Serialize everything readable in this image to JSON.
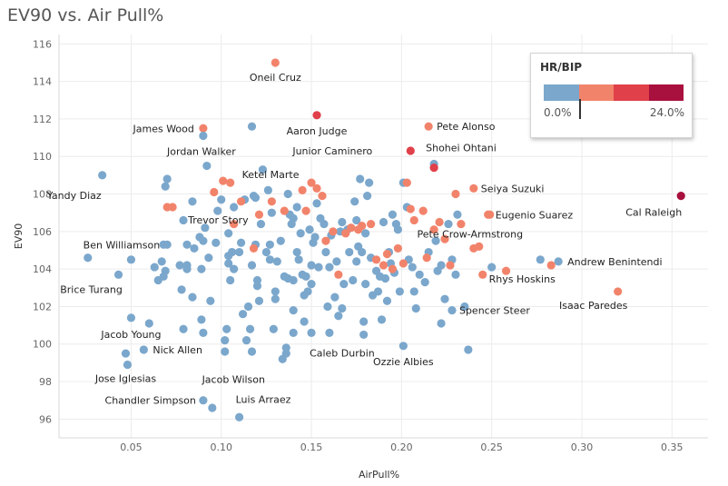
{
  "title": "EV90 vs. Air Pull%",
  "legend": {
    "title": "HR/BIP",
    "min_label": "0.0%",
    "max_label": "24.0%",
    "colors": [
      "#7ba7cc",
      "#f2836b",
      "#e0404a",
      "#a8103d"
    ]
  },
  "chart_data": {
    "type": "scatter",
    "title": "EV90 vs. Air Pull%",
    "xlabel": "AirPull%",
    "ylabel": "EV90",
    "xlim": [
      0.01,
      0.37
    ],
    "ylim": [
      95,
      116.5
    ],
    "xticks": [
      "0.05",
      "0.10",
      "0.15",
      "0.20",
      "0.25",
      "0.30",
      "0.35"
    ],
    "yticks": [
      "96",
      "98",
      "100",
      "102",
      "104",
      "106",
      "108",
      "110",
      "112",
      "114",
      "116"
    ],
    "grid": true,
    "color_encoding": "HR/BIP",
    "labeled_points": [
      {
        "name": "Oneil Cruz",
        "x": 0.13,
        "y": 115.0,
        "color": "#f2836b"
      },
      {
        "name": "Aaron Judge",
        "x": 0.153,
        "y": 112.2,
        "color": "#e0404a"
      },
      {
        "name": "James Wood",
        "x": 0.09,
        "y": 111.5,
        "color": "#f2836b"
      },
      {
        "name": "Pete Alonso",
        "x": 0.215,
        "y": 111.6,
        "color": "#f2836b"
      },
      {
        "name": "Jordan Walker",
        "x": 0.09,
        "y": 111.1,
        "color": "#7ba7cc"
      },
      {
        "name": "Junior Caminero",
        "x": 0.205,
        "y": 110.3,
        "color": "#e0404a"
      },
      {
        "name": "Shohei Ohtani",
        "x": 0.218,
        "y": 109.4,
        "color": "#e0404a"
      },
      {
        "name": "Ketel Marte",
        "x": 0.15,
        "y": 108.6,
        "color": "#f2836b"
      },
      {
        "name": "Yandy Diaz",
        "x": 0.034,
        "y": 109.0,
        "color": "#7ba7cc"
      },
      {
        "name": "Seiya Suzuki",
        "x": 0.24,
        "y": 108.3,
        "color": "#f2836b"
      },
      {
        "name": "Cal Raleigh",
        "x": 0.355,
        "y": 107.9,
        "color": "#a8103d"
      },
      {
        "name": "Eugenio Suarez",
        "x": 0.248,
        "y": 106.9,
        "color": "#f2836b"
      },
      {
        "name": "Trevor Story",
        "x": 0.073,
        "y": 107.3,
        "color": "#f2836b"
      },
      {
        "name": "Pete Crow-Armstrong",
        "x": 0.24,
        "y": 105.1,
        "color": "#f2836b"
      },
      {
        "name": "Ben Williamson",
        "x": 0.068,
        "y": 105.3,
        "color": "#7ba7cc"
      },
      {
        "name": "Andrew Benintendi",
        "x": 0.287,
        "y": 104.4,
        "color": "#7ba7cc"
      },
      {
        "name": "Rhys Hoskins",
        "x": 0.283,
        "y": 104.2,
        "color": "#f2836b"
      },
      {
        "name": "Brice Turang",
        "x": 0.043,
        "y": 103.7,
        "color": "#7ba7cc"
      },
      {
        "name": "Isaac Paredes",
        "x": 0.32,
        "y": 102.8,
        "color": "#f2836b"
      },
      {
        "name": "Spencer Steer",
        "x": 0.228,
        "y": 101.8,
        "color": "#7ba7cc"
      },
      {
        "name": "Jacob Young",
        "x": 0.05,
        "y": 101.4,
        "color": "#7ba7cc"
      },
      {
        "name": "Nick Allen",
        "x": 0.057,
        "y": 99.7,
        "color": "#7ba7cc"
      },
      {
        "name": "Caleb Durbin",
        "x": 0.16,
        "y": 100.6,
        "color": "#7ba7cc"
      },
      {
        "name": "Ozzie Albies",
        "x": 0.201,
        "y": 99.9,
        "color": "#7ba7cc"
      },
      {
        "name": "Jacob Wilson",
        "x": 0.134,
        "y": 99.2,
        "color": "#7ba7cc"
      },
      {
        "name": "Jose Iglesias",
        "x": 0.048,
        "y": 98.9,
        "color": "#7ba7cc"
      },
      {
        "name": "Chandler Simpson",
        "x": 0.09,
        "y": 97.0,
        "color": "#7ba7cc"
      },
      {
        "name": "Luis Arraez",
        "x": 0.11,
        "y": 96.1,
        "color": "#7ba7cc"
      }
    ],
    "other_points": [
      [
        0.026,
        104.6
      ],
      [
        0.047,
        99.5
      ],
      [
        0.05,
        104.5
      ],
      [
        0.06,
        101.1
      ],
      [
        0.063,
        104.1
      ],
      [
        0.065,
        103.4
      ],
      [
        0.067,
        104.4
      ],
      [
        0.068,
        103.6
      ],
      [
        0.069,
        103.9
      ],
      [
        0.07,
        108.8
      ],
      [
        0.069,
        108.4
      ],
      [
        0.07,
        105.3
      ],
      [
        0.079,
        106.6
      ],
      [
        0.077,
        104.2
      ],
      [
        0.078,
        102.9
      ],
      [
        0.079,
        100.8
      ],
      [
        0.081,
        104.0
      ],
      [
        0.081,
        104.2
      ],
      [
        0.081,
        105.3
      ],
      [
        0.084,
        107.6
      ],
      [
        0.084,
        102.5
      ],
      [
        0.085,
        105.1
      ],
      [
        0.088,
        105.7
      ],
      [
        0.089,
        104.0
      ],
      [
        0.089,
        101.3
      ],
      [
        0.09,
        100.6
      ],
      [
        0.09,
        105.5
      ],
      [
        0.091,
        106.2
      ],
      [
        0.092,
        109.5
      ],
      [
        0.093,
        104.6
      ],
      [
        0.094,
        102.3
      ],
      [
        0.095,
        96.6
      ],
      [
        0.097,
        105.4
      ],
      [
        0.098,
        107.1
      ],
      [
        0.1,
        107.7
      ],
      [
        0.102,
        99.6
      ],
      [
        0.102,
        100.2
      ],
      [
        0.103,
        100.8
      ],
      [
        0.104,
        105.9
      ],
      [
        0.104,
        104.7
      ],
      [
        0.104,
        104.3
      ],
      [
        0.105,
        103.4
      ],
      [
        0.106,
        104.9
      ],
      [
        0.107,
        104.0
      ],
      [
        0.107,
        107.3
      ],
      [
        0.11,
        104.9
      ],
      [
        0.111,
        105.4
      ],
      [
        0.112,
        101.6
      ],
      [
        0.113,
        107.7
      ],
      [
        0.114,
        100.2
      ],
      [
        0.115,
        102.0
      ],
      [
        0.116,
        100.8
      ],
      [
        0.117,
        99.6
      ],
      [
        0.117,
        104.2
      ],
      [
        0.117,
        111.6
      ],
      [
        0.118,
        107.9
      ],
      [
        0.119,
        107.8
      ],
      [
        0.119,
        105.3
      ],
      [
        0.12,
        103.1
      ],
      [
        0.12,
        103.4
      ],
      [
        0.121,
        102.3
      ],
      [
        0.122,
        106.4
      ],
      [
        0.123,
        109.3
      ],
      [
        0.125,
        104.9
      ],
      [
        0.126,
        108.2
      ],
      [
        0.127,
        105.3
      ],
      [
        0.127,
        104.5
      ],
      [
        0.128,
        107.0
      ],
      [
        0.129,
        100.8
      ],
      [
        0.13,
        102.8
      ],
      [
        0.13,
        102.4
      ],
      [
        0.131,
        104.4
      ],
      [
        0.133,
        105.5
      ],
      [
        0.135,
        103.6
      ],
      [
        0.136,
        99.5
      ],
      [
        0.136,
        99.8
      ],
      [
        0.137,
        103.5
      ],
      [
        0.137,
        108.0
      ],
      [
        0.138,
        106.9
      ],
      [
        0.139,
        106.4
      ],
      [
        0.14,
        103.4
      ],
      [
        0.14,
        106.7
      ],
      [
        0.14,
        101.8
      ],
      [
        0.14,
        100.6
      ],
      [
        0.142,
        107.3
      ],
      [
        0.142,
        104.9
      ],
      [
        0.143,
        104.5
      ],
      [
        0.144,
        105.9
      ],
      [
        0.145,
        103.7
      ],
      [
        0.146,
        102.6
      ],
      [
        0.146,
        101.2
      ],
      [
        0.147,
        103.6
      ],
      [
        0.148,
        102.8
      ],
      [
        0.149,
        106.1
      ],
      [
        0.15,
        104.2
      ],
      [
        0.15,
        103.2
      ],
      [
        0.15,
        100.6
      ],
      [
        0.151,
        105.4
      ],
      [
        0.152,
        105.7
      ],
      [
        0.153,
        107.5
      ],
      [
        0.154,
        104.1
      ],
      [
        0.155,
        106.7
      ],
      [
        0.157,
        106.4
      ],
      [
        0.158,
        104.9
      ],
      [
        0.159,
        102.0
      ],
      [
        0.16,
        104.1
      ],
      [
        0.161,
        105.8
      ],
      [
        0.163,
        102.5
      ],
      [
        0.164,
        104.4
      ],
      [
        0.165,
        101.5
      ],
      [
        0.166,
        106.0
      ],
      [
        0.167,
        106.5
      ],
      [
        0.167,
        101.9
      ],
      [
        0.168,
        103.2
      ],
      [
        0.17,
        106.1
      ],
      [
        0.171,
        104.9
      ],
      [
        0.173,
        103.4
      ],
      [
        0.174,
        107.6
      ],
      [
        0.175,
        104.4
      ],
      [
        0.175,
        106.6
      ],
      [
        0.176,
        105.2
      ],
      [
        0.177,
        108.8
      ],
      [
        0.178,
        104.9
      ],
      [
        0.179,
        101.2
      ],
      [
        0.179,
        100.5
      ],
      [
        0.18,
        103.2
      ],
      [
        0.18,
        105.9
      ],
      [
        0.181,
        107.9
      ],
      [
        0.182,
        108.6
      ],
      [
        0.183,
        104.6
      ],
      [
        0.184,
        102.6
      ],
      [
        0.186,
        103.9
      ],
      [
        0.187,
        102.8
      ],
      [
        0.188,
        103.6
      ],
      [
        0.189,
        101.3
      ],
      [
        0.19,
        106.5
      ],
      [
        0.191,
        103.5
      ],
      [
        0.192,
        102.3
      ],
      [
        0.193,
        104.9
      ],
      [
        0.194,
        104.3
      ],
      [
        0.195,
        106.9
      ],
      [
        0.196,
        103.8
      ],
      [
        0.197,
        106.4
      ],
      [
        0.198,
        106.1
      ],
      [
        0.199,
        102.8
      ],
      [
        0.201,
        108.6
      ],
      [
        0.203,
        107.3
      ],
      [
        0.204,
        104.5
      ],
      [
        0.206,
        104.1
      ],
      [
        0.207,
        102.8
      ],
      [
        0.208,
        101.9
      ],
      [
        0.21,
        103.7
      ],
      [
        0.213,
        103.3
      ],
      [
        0.215,
        104.9
      ],
      [
        0.218,
        109.6
      ],
      [
        0.219,
        105.5
      ],
      [
        0.22,
        103.9
      ],
      [
        0.222,
        104.2
      ],
      [
        0.222,
        101.1
      ],
      [
        0.224,
        102.4
      ],
      [
        0.226,
        106.4
      ],
      [
        0.228,
        104.5
      ],
      [
        0.23,
        103.7
      ],
      [
        0.231,
        106.9
      ],
      [
        0.235,
        102.0
      ],
      [
        0.237,
        99.7
      ],
      [
        0.25,
        104.1
      ],
      [
        0.277,
        104.5
      ]
    ],
    "other_points_accent": [
      [
        0.07,
        107.3
      ],
      [
        0.096,
        108.1
      ],
      [
        0.101,
        108.7
      ],
      [
        0.105,
        108.6
      ],
      [
        0.107,
        106.4
      ],
      [
        0.111,
        107.6
      ],
      [
        0.118,
        105.1
      ],
      [
        0.121,
        106.9
      ],
      [
        0.128,
        107.6
      ],
      [
        0.135,
        107.1
      ],
      [
        0.145,
        108.2
      ],
      [
        0.147,
        107.1
      ],
      [
        0.153,
        108.3
      ],
      [
        0.156,
        107.9
      ],
      [
        0.158,
        105.5
      ],
      [
        0.162,
        106.0
      ],
      [
        0.165,
        103.7
      ],
      [
        0.169,
        105.9
      ],
      [
        0.172,
        106.2
      ],
      [
        0.176,
        106.1
      ],
      [
        0.178,
        106.3
      ],
      [
        0.183,
        106.4
      ],
      [
        0.186,
        104.5
      ],
      [
        0.19,
        104.2
      ],
      [
        0.192,
        104.8
      ],
      [
        0.195,
        104.0
      ],
      [
        0.198,
        105.1
      ],
      [
        0.201,
        104.3
      ],
      [
        0.203,
        108.6
      ],
      [
        0.205,
        107.2
      ],
      [
        0.207,
        106.6
      ],
      [
        0.212,
        107.1
      ],
      [
        0.214,
        104.6
      ],
      [
        0.218,
        106.1
      ],
      [
        0.221,
        106.5
      ],
      [
        0.224,
        105.6
      ],
      [
        0.227,
        104.2
      ],
      [
        0.23,
        108.0
      ],
      [
        0.233,
        106.4
      ],
      [
        0.245,
        103.7
      ],
      [
        0.249,
        106.9
      ],
      [
        0.258,
        103.9
      ],
      [
        0.243,
        105.2
      ]
    ]
  }
}
